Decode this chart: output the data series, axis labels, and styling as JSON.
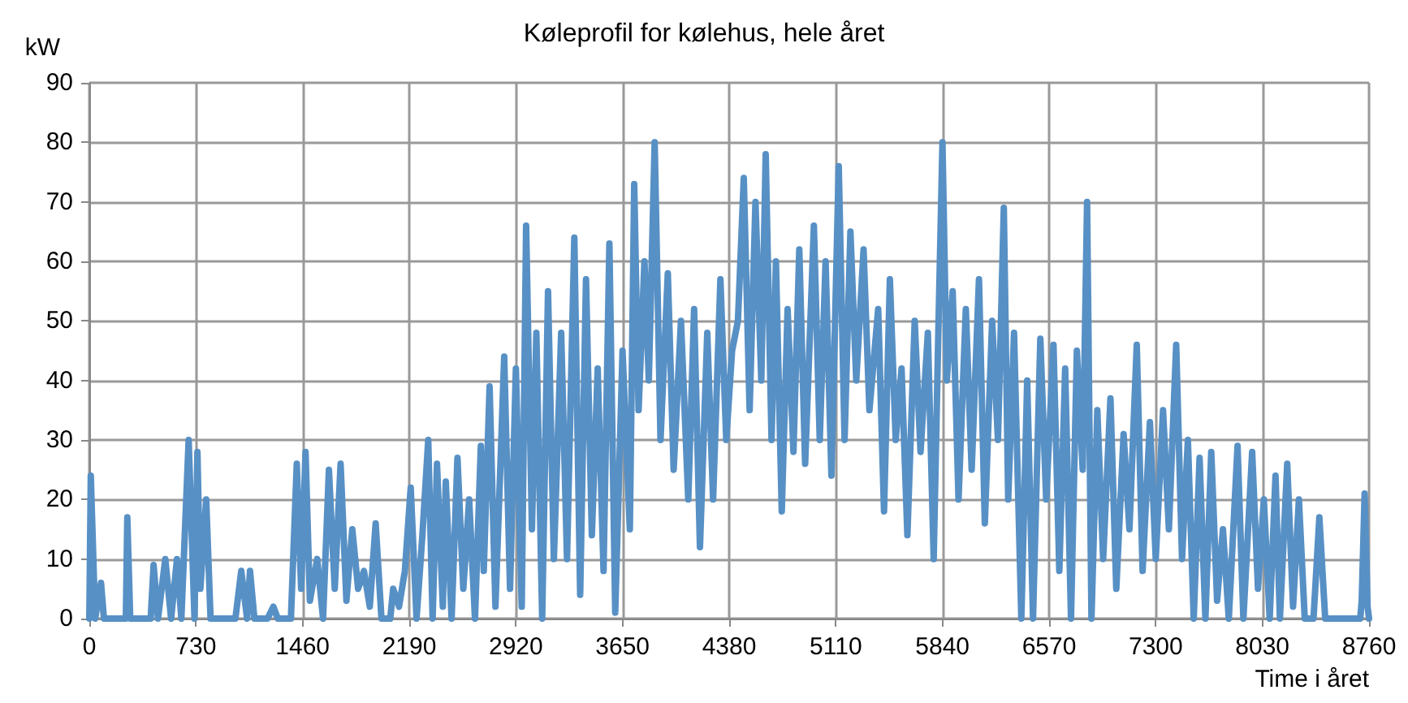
{
  "chart_data": {
    "type": "line",
    "title": "Køleprofil for kølehus, hele året",
    "ylabel": "kW",
    "xlabel": "Time i året",
    "color": "#5790c5",
    "grid": true,
    "marker": "none",
    "line_style": "solid",
    "xlim": [
      0,
      8760
    ],
    "xticks": [
      0,
      730,
      1460,
      2190,
      2920,
      3650,
      4380,
      5110,
      5840,
      6570,
      7300,
      8030,
      8760
    ],
    "ylim": [
      0,
      90
    ],
    "yticks": [
      0,
      10,
      20,
      30,
      40,
      50,
      60,
      70,
      80,
      90
    ],
    "x": [
      0,
      10,
      40,
      80,
      100,
      250,
      260,
      280,
      420,
      440,
      470,
      520,
      560,
      600,
      630,
      680,
      720,
      740,
      760,
      800,
      830,
      1000,
      1040,
      1080,
      1100,
      1130,
      1220,
      1260,
      1290,
      1380,
      1420,
      1450,
      1480,
      1510,
      1560,
      1600,
      1640,
      1680,
      1720,
      1760,
      1800,
      1840,
      1880,
      1920,
      1960,
      2000,
      2060,
      2080,
      2120,
      2160,
      2200,
      2240,
      2280,
      2320,
      2350,
      2380,
      2420,
      2440,
      2480,
      2520,
      2560,
      2600,
      2640,
      2680,
      2700,
      2740,
      2780,
      2840,
      2880,
      2920,
      2960,
      2990,
      3030,
      3060,
      3100,
      3140,
      3180,
      3230,
      3270,
      3320,
      3360,
      3400,
      3440,
      3480,
      3520,
      3560,
      3600,
      3650,
      3700,
      3730,
      3760,
      3800,
      3830,
      3870,
      3910,
      3960,
      4000,
      4050,
      4100,
      4140,
      4180,
      4230,
      4270,
      4320,
      4360,
      4400,
      4440,
      4480,
      4520,
      4560,
      4600,
      4630,
      4670,
      4700,
      4740,
      4780,
      4820,
      4860,
      4900,
      4960,
      5000,
      5040,
      5080,
      5130,
      5170,
      5210,
      5250,
      5300,
      5340,
      5400,
      5440,
      5480,
      5520,
      5560,
      5600,
      5650,
      5690,
      5740,
      5780,
      5810,
      5840,
      5870,
      5910,
      5950,
      6000,
      6040,
      6090,
      6130,
      6180,
      6220,
      6260,
      6290,
      6330,
      6380,
      6420,
      6460,
      6510,
      6550,
      6600,
      6640,
      6680,
      6720,
      6760,
      6800,
      6830,
      6860,
      6900,
      6940,
      6990,
      7030,
      7080,
      7120,
      7170,
      7210,
      7260,
      7300,
      7350,
      7390,
      7440,
      7480,
      7520,
      7560,
      7600,
      7640,
      7680,
      7720,
      7760,
      7800,
      7860,
      7900,
      7960,
      8000,
      8040,
      8080,
      8120,
      8150,
      8200,
      8240,
      8280,
      8320,
      8380,
      8420,
      8460,
      8700,
      8710,
      8730,
      8750,
      8760
    ],
    "values": [
      0,
      24,
      0,
      6,
      0,
      0,
      17,
      0,
      0,
      9,
      0,
      10,
      0,
      10,
      0,
      30,
      0,
      28,
      5,
      20,
      0,
      0,
      8,
      0,
      8,
      0,
      0,
      2,
      0,
      0,
      26,
      5,
      28,
      3,
      10,
      0,
      25,
      5,
      26,
      3,
      15,
      5,
      8,
      2,
      16,
      0,
      0,
      5,
      2,
      8,
      22,
      0,
      14,
      30,
      0,
      26,
      2,
      23,
      0,
      27,
      5,
      20,
      0,
      29,
      8,
      39,
      2,
      44,
      5,
      42,
      2,
      66,
      15,
      48,
      0,
      55,
      10,
      48,
      10,
      64,
      4,
      57,
      14,
      42,
      8,
      63,
      1,
      45,
      15,
      73,
      35,
      60,
      40,
      80,
      30,
      58,
      25,
      50,
      20,
      52,
      12,
      48,
      20,
      57,
      30,
      45,
      50,
      74,
      35,
      70,
      40,
      78,
      30,
      60,
      18,
      52,
      28,
      62,
      26,
      66,
      30,
      60,
      24,
      76,
      30,
      65,
      40,
      62,
      35,
      52,
      18,
      57,
      30,
      42,
      14,
      50,
      28,
      48,
      10,
      46,
      80,
      40,
      55,
      20,
      52,
      25,
      57,
      16,
      50,
      30,
      69,
      20,
      48,
      0,
      40,
      0,
      47,
      20,
      46,
      8,
      42,
      0,
      45,
      25,
      70,
      0,
      35,
      10,
      37,
      5,
      31,
      15,
      46,
      8,
      33,
      10,
      35,
      15,
      46,
      10,
      30,
      0,
      27,
      0,
      28,
      3,
      15,
      0,
      29,
      0,
      28,
      5,
      20,
      0,
      24,
      0,
      26,
      2,
      20,
      0,
      0,
      17,
      0,
      0,
      3,
      21,
      2,
      0
    ]
  }
}
